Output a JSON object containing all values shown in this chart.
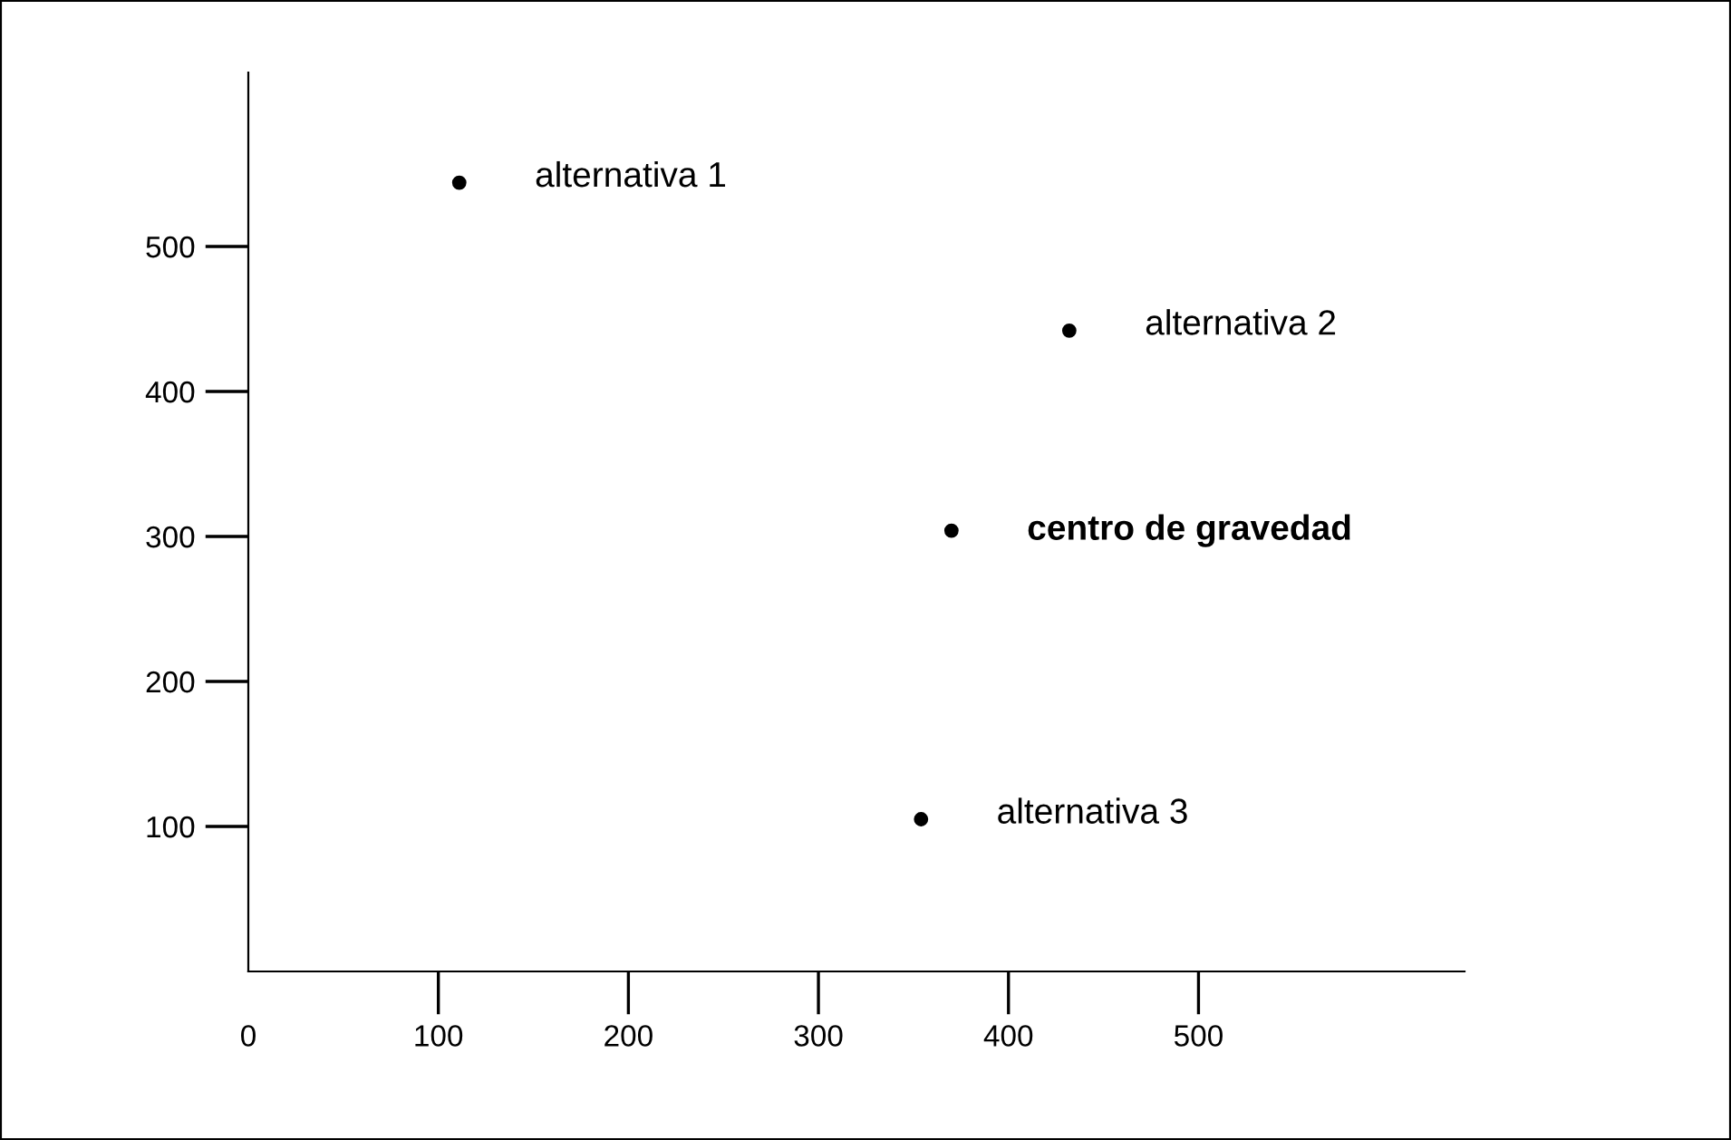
{
  "chart_data": {
    "type": "scatter",
    "x": [
      111,
      432,
      354
    ],
    "series": [
      {
        "color": "#000000",
        "values": [
          544,
          442,
          105
        ]
      },
      {
        "name": "centro de gravedad",
        "color": "#000000",
        "x": [
          370
        ],
        "values": [
          304
        ]
      }
    ],
    "annotations": [
      {
        "text": "alternativa 1",
        "x": 111,
        "y": 544
      },
      {
        "text": "alternativa 2",
        "x": 432,
        "y": 442
      },
      {
        "text": "alternativa 3",
        "x": 354,
        "y": 105
      }
    ],
    "xlim": [
      0,
      640
    ],
    "ylim": [
      0,
      620
    ],
    "xticks": [
      0,
      100,
      200,
      300,
      400,
      500
    ],
    "yticks": [
      100,
      200,
      300,
      400,
      500
    ],
    "marker": "circle",
    "grid": false,
    "legend": false
  }
}
